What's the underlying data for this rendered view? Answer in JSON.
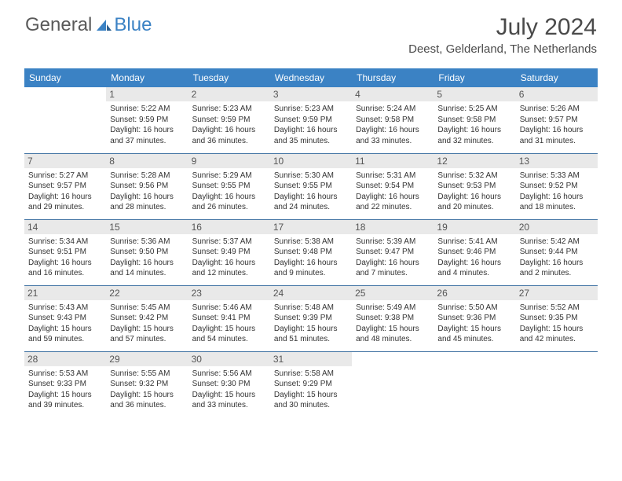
{
  "brand": {
    "part1": "General",
    "part2": "Blue",
    "logo_color": "#3b82c4"
  },
  "title": "July 2024",
  "location": "Deest, Gelderland, The Netherlands",
  "colors": {
    "header_bg": "#3b82c4",
    "header_text": "#ffffff",
    "daynum_bg": "#e9e9e9",
    "border": "#3b6ea0",
    "text": "#333333"
  },
  "day_headers": [
    "Sunday",
    "Monday",
    "Tuesday",
    "Wednesday",
    "Thursday",
    "Friday",
    "Saturday"
  ],
  "weeks": [
    [
      null,
      {
        "n": "1",
        "sr": "Sunrise: 5:22 AM",
        "ss": "Sunset: 9:59 PM",
        "dl": "Daylight: 16 hours and 37 minutes."
      },
      {
        "n": "2",
        "sr": "Sunrise: 5:23 AM",
        "ss": "Sunset: 9:59 PM",
        "dl": "Daylight: 16 hours and 36 minutes."
      },
      {
        "n": "3",
        "sr": "Sunrise: 5:23 AM",
        "ss": "Sunset: 9:59 PM",
        "dl": "Daylight: 16 hours and 35 minutes."
      },
      {
        "n": "4",
        "sr": "Sunrise: 5:24 AM",
        "ss": "Sunset: 9:58 PM",
        "dl": "Daylight: 16 hours and 33 minutes."
      },
      {
        "n": "5",
        "sr": "Sunrise: 5:25 AM",
        "ss": "Sunset: 9:58 PM",
        "dl": "Daylight: 16 hours and 32 minutes."
      },
      {
        "n": "6",
        "sr": "Sunrise: 5:26 AM",
        "ss": "Sunset: 9:57 PM",
        "dl": "Daylight: 16 hours and 31 minutes."
      }
    ],
    [
      {
        "n": "7",
        "sr": "Sunrise: 5:27 AM",
        "ss": "Sunset: 9:57 PM",
        "dl": "Daylight: 16 hours and 29 minutes."
      },
      {
        "n": "8",
        "sr": "Sunrise: 5:28 AM",
        "ss": "Sunset: 9:56 PM",
        "dl": "Daylight: 16 hours and 28 minutes."
      },
      {
        "n": "9",
        "sr": "Sunrise: 5:29 AM",
        "ss": "Sunset: 9:55 PM",
        "dl": "Daylight: 16 hours and 26 minutes."
      },
      {
        "n": "10",
        "sr": "Sunrise: 5:30 AM",
        "ss": "Sunset: 9:55 PM",
        "dl": "Daylight: 16 hours and 24 minutes."
      },
      {
        "n": "11",
        "sr": "Sunrise: 5:31 AM",
        "ss": "Sunset: 9:54 PM",
        "dl": "Daylight: 16 hours and 22 minutes."
      },
      {
        "n": "12",
        "sr": "Sunrise: 5:32 AM",
        "ss": "Sunset: 9:53 PM",
        "dl": "Daylight: 16 hours and 20 minutes."
      },
      {
        "n": "13",
        "sr": "Sunrise: 5:33 AM",
        "ss": "Sunset: 9:52 PM",
        "dl": "Daylight: 16 hours and 18 minutes."
      }
    ],
    [
      {
        "n": "14",
        "sr": "Sunrise: 5:34 AM",
        "ss": "Sunset: 9:51 PM",
        "dl": "Daylight: 16 hours and 16 minutes."
      },
      {
        "n": "15",
        "sr": "Sunrise: 5:36 AM",
        "ss": "Sunset: 9:50 PM",
        "dl": "Daylight: 16 hours and 14 minutes."
      },
      {
        "n": "16",
        "sr": "Sunrise: 5:37 AM",
        "ss": "Sunset: 9:49 PM",
        "dl": "Daylight: 16 hours and 12 minutes."
      },
      {
        "n": "17",
        "sr": "Sunrise: 5:38 AM",
        "ss": "Sunset: 9:48 PM",
        "dl": "Daylight: 16 hours and 9 minutes."
      },
      {
        "n": "18",
        "sr": "Sunrise: 5:39 AM",
        "ss": "Sunset: 9:47 PM",
        "dl": "Daylight: 16 hours and 7 minutes."
      },
      {
        "n": "19",
        "sr": "Sunrise: 5:41 AM",
        "ss": "Sunset: 9:46 PM",
        "dl": "Daylight: 16 hours and 4 minutes."
      },
      {
        "n": "20",
        "sr": "Sunrise: 5:42 AM",
        "ss": "Sunset: 9:44 PM",
        "dl": "Daylight: 16 hours and 2 minutes."
      }
    ],
    [
      {
        "n": "21",
        "sr": "Sunrise: 5:43 AM",
        "ss": "Sunset: 9:43 PM",
        "dl": "Daylight: 15 hours and 59 minutes."
      },
      {
        "n": "22",
        "sr": "Sunrise: 5:45 AM",
        "ss": "Sunset: 9:42 PM",
        "dl": "Daylight: 15 hours and 57 minutes."
      },
      {
        "n": "23",
        "sr": "Sunrise: 5:46 AM",
        "ss": "Sunset: 9:41 PM",
        "dl": "Daylight: 15 hours and 54 minutes."
      },
      {
        "n": "24",
        "sr": "Sunrise: 5:48 AM",
        "ss": "Sunset: 9:39 PM",
        "dl": "Daylight: 15 hours and 51 minutes."
      },
      {
        "n": "25",
        "sr": "Sunrise: 5:49 AM",
        "ss": "Sunset: 9:38 PM",
        "dl": "Daylight: 15 hours and 48 minutes."
      },
      {
        "n": "26",
        "sr": "Sunrise: 5:50 AM",
        "ss": "Sunset: 9:36 PM",
        "dl": "Daylight: 15 hours and 45 minutes."
      },
      {
        "n": "27",
        "sr": "Sunrise: 5:52 AM",
        "ss": "Sunset: 9:35 PM",
        "dl": "Daylight: 15 hours and 42 minutes."
      }
    ],
    [
      {
        "n": "28",
        "sr": "Sunrise: 5:53 AM",
        "ss": "Sunset: 9:33 PM",
        "dl": "Daylight: 15 hours and 39 minutes."
      },
      {
        "n": "29",
        "sr": "Sunrise: 5:55 AM",
        "ss": "Sunset: 9:32 PM",
        "dl": "Daylight: 15 hours and 36 minutes."
      },
      {
        "n": "30",
        "sr": "Sunrise: 5:56 AM",
        "ss": "Sunset: 9:30 PM",
        "dl": "Daylight: 15 hours and 33 minutes."
      },
      {
        "n": "31",
        "sr": "Sunrise: 5:58 AM",
        "ss": "Sunset: 9:29 PM",
        "dl": "Daylight: 15 hours and 30 minutes."
      },
      null,
      null,
      null
    ]
  ]
}
